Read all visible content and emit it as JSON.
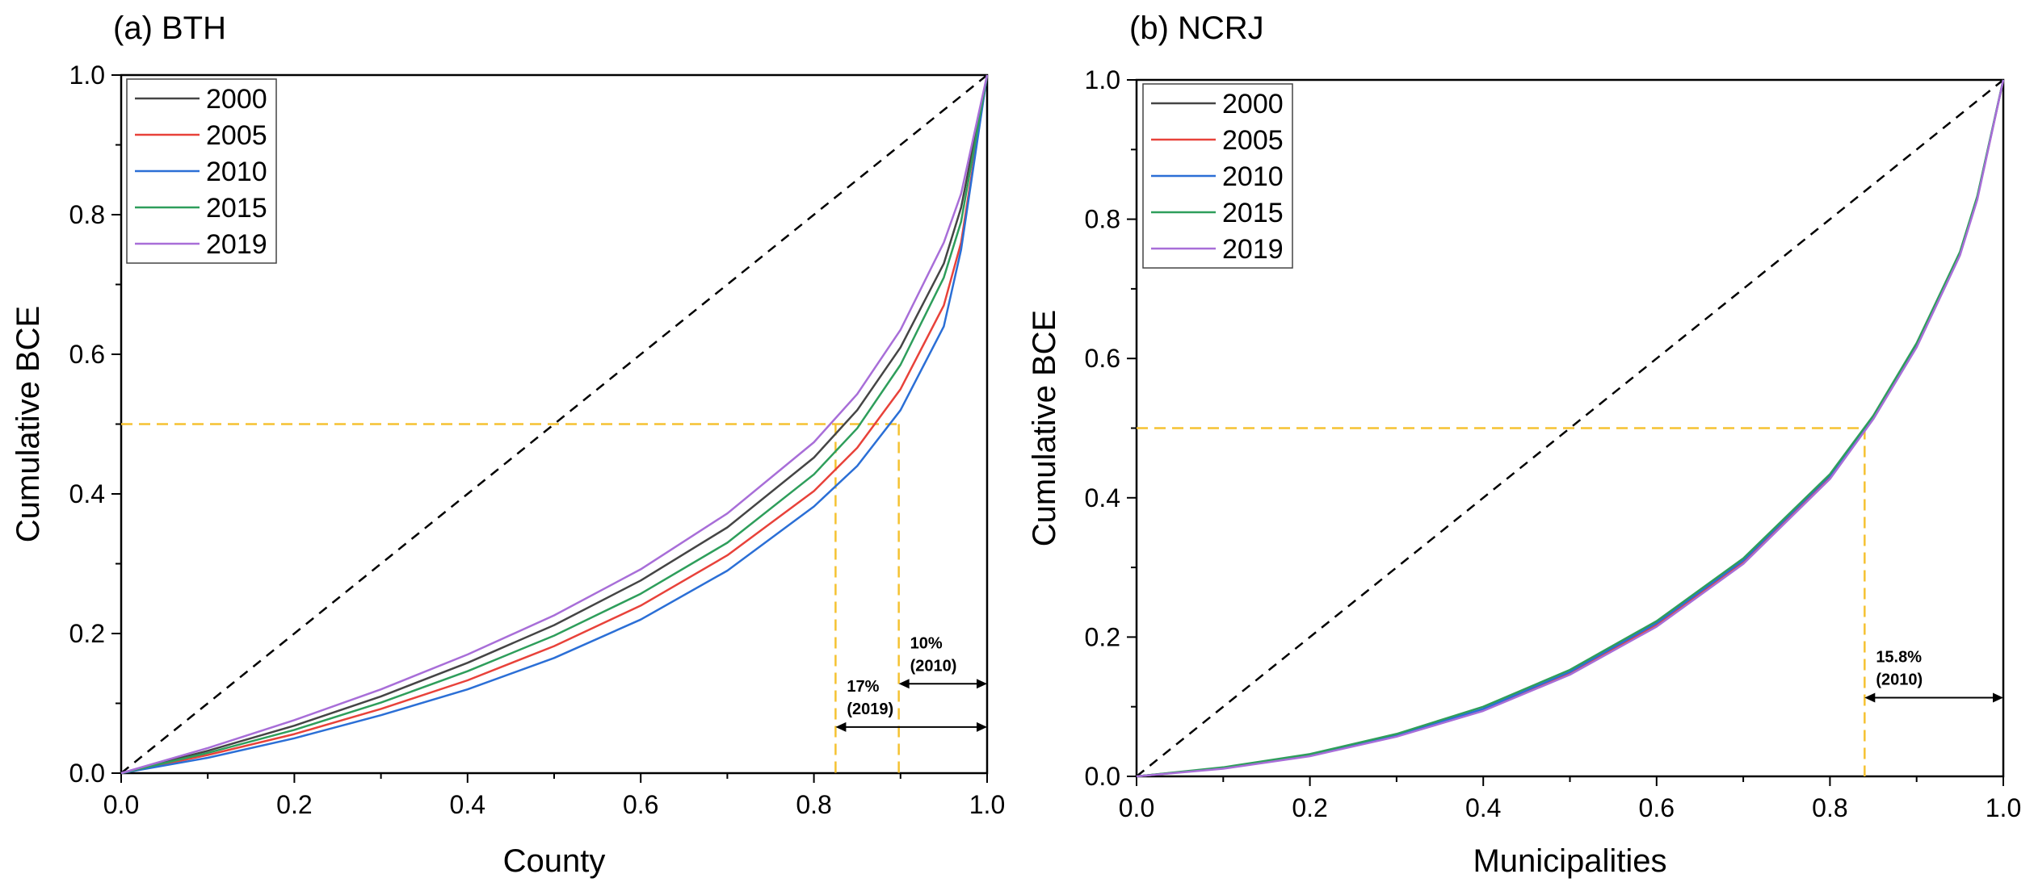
{
  "chart_data": [
    {
      "type": "line",
      "title": "(a) BTH",
      "xlabel": "County",
      "ylabel": "Cumulative BCE",
      "xlim": [
        0.0,
        1.0
      ],
      "ylim": [
        0.0,
        1.0
      ],
      "xticks": [
        "0.0",
        "0.2",
        "0.4",
        "0.6",
        "0.8",
        "1.0"
      ],
      "yticks": [
        "0.0",
        "0.2",
        "0.4",
        "0.6",
        "0.8",
        "1.0"
      ],
      "legend_position": "top-left",
      "reference_line": {
        "name": "equality line",
        "x": [
          0,
          1
        ],
        "y": [
          0,
          1
        ],
        "color": "#000000",
        "style": "dashed"
      },
      "threshold_y": 0.5,
      "threshold_x": [
        0.825,
        0.898
      ],
      "x": [
        0,
        0.1,
        0.2,
        0.3,
        0.4,
        0.5,
        0.6,
        0.7,
        0.8,
        0.85,
        0.9,
        0.95,
        0.97,
        1.0
      ],
      "series": [
        {
          "name": "2000",
          "color": "#454545",
          "values": [
            0,
            0.032,
            0.068,
            0.11,
            0.158,
            0.212,
            0.276,
            0.352,
            0.452,
            0.52,
            0.61,
            0.73,
            0.81,
            1.0
          ]
        },
        {
          "name": "2005",
          "color": "#e8423a",
          "values": [
            0,
            0.026,
            0.056,
            0.092,
            0.133,
            0.182,
            0.24,
            0.312,
            0.404,
            0.466,
            0.55,
            0.67,
            0.76,
            1.0
          ]
        },
        {
          "name": "2010",
          "color": "#2b6fd6",
          "values": [
            0,
            0.022,
            0.05,
            0.083,
            0.12,
            0.165,
            0.22,
            0.29,
            0.382,
            0.44,
            0.52,
            0.64,
            0.75,
            1.0
          ]
        },
        {
          "name": "2015",
          "color": "#2e9e5b",
          "values": [
            0,
            0.029,
            0.062,
            0.101,
            0.146,
            0.197,
            0.257,
            0.33,
            0.428,
            0.494,
            0.585,
            0.71,
            0.79,
            1.0
          ]
        },
        {
          "name": "2019",
          "color": "#a86ed8",
          "values": [
            0,
            0.036,
            0.076,
            0.12,
            0.17,
            0.226,
            0.292,
            0.372,
            0.474,
            0.543,
            0.635,
            0.76,
            0.83,
            1.0
          ]
        }
      ],
      "annotations": [
        {
          "line1": "10%",
          "line2": "(2010)",
          "arrow_x": [
            0.898,
            1.0
          ],
          "arrow_y": 0.128
        },
        {
          "line1": "17%",
          "line2": "(2019)",
          "arrow_x": [
            0.825,
            1.0
          ],
          "arrow_y": 0.066
        }
      ]
    },
    {
      "type": "line",
      "title": "(b) NCRJ",
      "xlabel": "Municipalities",
      "ylabel": "Cumulative BCE",
      "xlim": [
        0.0,
        1.0
      ],
      "ylim": [
        0.0,
        1.0
      ],
      "xticks": [
        "0.0",
        "0.2",
        "0.4",
        "0.6",
        "0.8",
        "1.0"
      ],
      "yticks": [
        "0.0",
        "0.2",
        "0.4",
        "0.6",
        "0.8",
        "1.0"
      ],
      "legend_position": "top-left",
      "reference_line": {
        "name": "equality line",
        "x": [
          0,
          1
        ],
        "y": [
          0,
          1
        ],
        "color": "#000000",
        "style": "dashed"
      },
      "threshold_y": 0.5,
      "threshold_x": [
        0.84
      ],
      "x": [
        0,
        0.1,
        0.2,
        0.3,
        0.4,
        0.5,
        0.6,
        0.7,
        0.8,
        0.85,
        0.9,
        0.95,
        0.97,
        1.0
      ],
      "series": [
        {
          "name": "2000",
          "color": "#454545",
          "values": [
            0,
            0.012,
            0.03,
            0.058,
            0.096,
            0.148,
            0.218,
            0.308,
            0.43,
            0.515,
            0.618,
            0.75,
            0.83,
            1.0
          ]
        },
        {
          "name": "2005",
          "color": "#e8423a",
          "values": [
            0,
            0.012,
            0.03,
            0.058,
            0.096,
            0.148,
            0.218,
            0.308,
            0.43,
            0.515,
            0.618,
            0.75,
            0.83,
            1.0
          ]
        },
        {
          "name": "2010",
          "color": "#2b6fd6",
          "values": [
            0,
            0.012,
            0.031,
            0.059,
            0.097,
            0.15,
            0.22,
            0.31,
            0.432,
            0.516,
            0.62,
            0.752,
            0.832,
            1.0
          ]
        },
        {
          "name": "2015",
          "color": "#2e9e5b",
          "values": [
            0,
            0.013,
            0.032,
            0.061,
            0.1,
            0.153,
            0.223,
            0.313,
            0.434,
            0.518,
            0.622,
            0.753,
            0.833,
            1.0
          ]
        },
        {
          "name": "2019",
          "color": "#a86ed8",
          "values": [
            0,
            0.011,
            0.029,
            0.057,
            0.094,
            0.146,
            0.215,
            0.305,
            0.427,
            0.513,
            0.616,
            0.748,
            0.828,
            1.0
          ]
        }
      ],
      "annotations": [
        {
          "line1": "15.8%",
          "line2": "(2010)",
          "arrow_x": [
            0.84,
            1.0
          ],
          "arrow_y": 0.113
        }
      ]
    }
  ]
}
